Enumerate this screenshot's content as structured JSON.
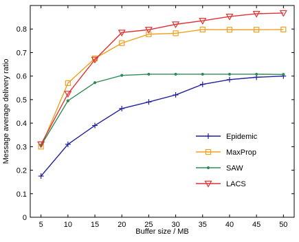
{
  "chart_data": {
    "type": "line",
    "xlabel": "Buffer size / MB",
    "ylabel": "Message average delivery ratio",
    "x": [
      5,
      10,
      15,
      20,
      25,
      30,
      35,
      40,
      45,
      50
    ],
    "xlim": [
      3,
      52
    ],
    "ylim": [
      0,
      0.9
    ],
    "xticks": [
      5,
      10,
      15,
      20,
      25,
      30,
      35,
      40,
      45,
      50
    ],
    "yticks": [
      0,
      0.1,
      0.2,
      0.3,
      0.4,
      0.5,
      0.6,
      0.7,
      0.8
    ],
    "ytick_labels": [
      "0",
      "0.1",
      "0.2",
      "0.3",
      "0.4",
      "0.5",
      "0.6",
      "0.7",
      "0.8"
    ],
    "grid": false,
    "legend_position": "lower-right",
    "series": [
      {
        "name": "Epidemic",
        "color": "#1f1f9f",
        "marker": "plus",
        "values": [
          0.175,
          0.31,
          0.39,
          0.462,
          0.49,
          0.52,
          0.565,
          0.585,
          0.595,
          0.6
        ]
      },
      {
        "name": "MaxProp",
        "color": "#f0a020",
        "marker": "square",
        "values": [
          0.3,
          0.57,
          0.675,
          0.74,
          0.778,
          0.782,
          0.798,
          0.797,
          0.797,
          0.798
        ]
      },
      {
        "name": "SAW",
        "color": "#2e8b57",
        "marker": "dot",
        "values": [
          0.305,
          0.495,
          0.572,
          0.603,
          0.608,
          0.608,
          0.608,
          0.608,
          0.608,
          0.607
        ]
      },
      {
        "name": "LACS",
        "color": "#e03030",
        "marker": "triangle-down",
        "values": [
          0.31,
          0.525,
          0.67,
          0.785,
          0.797,
          0.82,
          0.835,
          0.853,
          0.865,
          0.868
        ]
      }
    ]
  }
}
